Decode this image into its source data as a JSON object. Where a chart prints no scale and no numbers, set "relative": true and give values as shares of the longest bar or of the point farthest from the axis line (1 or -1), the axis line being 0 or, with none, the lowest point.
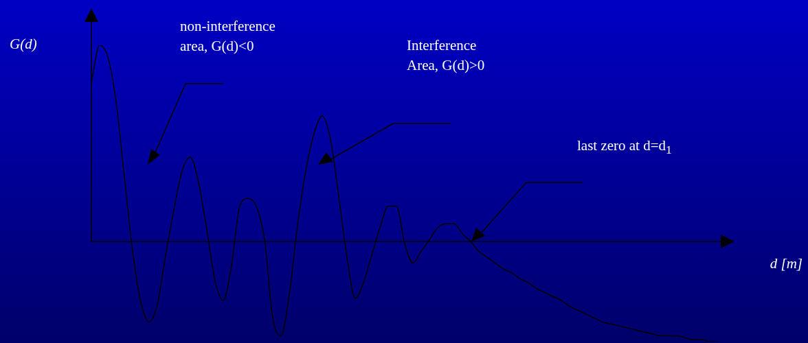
{
  "chart_data": {
    "type": "line",
    "relative": true,
    "xlabel": "d [m]",
    "ylabel": "G(d)",
    "categories": [
      null,
      null,
      null,
      null,
      null,
      null,
      null,
      null,
      null,
      null,
      null,
      null,
      null,
      null,
      null,
      null,
      null,
      null,
      null,
      null,
      null,
      null,
      null,
      null,
      null,
      null,
      null,
      null,
      null,
      null,
      null,
      null,
      null,
      null,
      null,
      null,
      null,
      null,
      null,
      null,
      null,
      null,
      null,
      null,
      null,
      null,
      null,
      null,
      null,
      null,
      null,
      null,
      null,
      null,
      null,
      null,
      null,
      null,
      null,
      null,
      null,
      null,
      null,
      null,
      null,
      null,
      null,
      null,
      null,
      null,
      null,
      null,
      null,
      null,
      null,
      null,
      null
    ],
    "series": [
      {
        "color": "#000000",
        "values": [
          0.81,
          1,
          0.94,
          0.71,
          0.33,
          -0.05,
          -0.31,
          -0.41,
          -0.32,
          -0.07,
          0.16,
          0.36,
          0.43,
          0.3,
          0.06,
          -0.2,
          -0.3,
          -0.12,
          0.18,
          0.22,
          0.18,
          0.01,
          -0.39,
          -0.48,
          -0.27,
          0.08,
          0.36,
          0.55,
          0.64,
          0.52,
          0.23,
          -0.08,
          -0.29,
          -0.21,
          -0.07,
          0.07,
          0.18,
          0.18,
          -0.01,
          -0.11,
          -0.05,
          0.01,
          0.07,
          0.09,
          0.09,
          0.04,
          0,
          -0.05,
          -0.08,
          -0.11,
          -0.14,
          -0.16,
          -0.19,
          -0.21,
          -0.24,
          -0.26,
          -0.28,
          -0.3,
          -0.33,
          -0.35,
          -0.37,
          -0.39,
          -0.41,
          -0.42,
          -0.43,
          -0.44,
          -0.45,
          -0.46,
          -0.47,
          -0.48,
          -0.48,
          -0.48,
          -0.49,
          -0.5,
          -0.5,
          -0.51,
          -0.51
        ]
      }
    ],
    "annotations": [
      "non-interference area, G(d)<0",
      "Interference Area, G(d)>0",
      "last zero at d=d$_{1}$"
    ],
    "grid": false,
    "legend": false,
    "tick_labels": false,
    "marker": "none",
    "line_style": "solid"
  }
}
